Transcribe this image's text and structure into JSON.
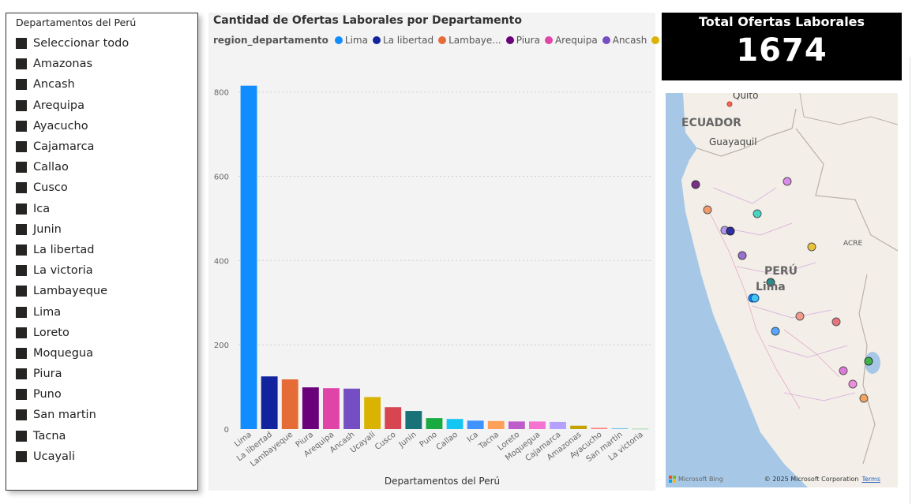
{
  "slicer": {
    "title": "Departamentos del Perú",
    "items": [
      {
        "label": "Seleccionar todo"
      },
      {
        "label": "Amazonas"
      },
      {
        "label": "Ancash"
      },
      {
        "label": "Arequipa"
      },
      {
        "label": "Ayacucho"
      },
      {
        "label": "Cajamarca"
      },
      {
        "label": "Callao"
      },
      {
        "label": "Cusco"
      },
      {
        "label": "Ica"
      },
      {
        "label": "Junin"
      },
      {
        "label": "La libertad"
      },
      {
        "label": "La victoria"
      },
      {
        "label": "Lambayeque"
      },
      {
        "label": "Lima"
      },
      {
        "label": "Loreto"
      },
      {
        "label": "Moquegua"
      },
      {
        "label": "Piura"
      },
      {
        "label": "Puno"
      },
      {
        "label": "San martin"
      },
      {
        "label": "Tacna"
      },
      {
        "label": "Ucayali"
      }
    ]
  },
  "legend": {
    "title": "region_departamento",
    "items": [
      {
        "label": "Lima",
        "color": "#118DFF"
      },
      {
        "label": "La libertad",
        "color": "#12239E"
      },
      {
        "label": "Lambaye...",
        "color": "#E66C37"
      },
      {
        "label": "Piura",
        "color": "#6B007B"
      },
      {
        "label": "Arequipa",
        "color": "#E044A7"
      },
      {
        "label": "Ancash",
        "color": "#744EC2"
      },
      {
        "label": "Ucayali",
        "color": "#D9B300"
      }
    ],
    "arrow": "▶"
  },
  "chart_data": {
    "type": "bar",
    "title": "Cantidad de Ofertas Laborales por Departamento",
    "xlabel": "Departamentos del Perú",
    "ylabel": "",
    "ylim": [
      0,
      820
    ],
    "yticks": [
      0,
      200,
      400,
      600,
      800
    ],
    "grid": true,
    "legend_position": "top",
    "categories": [
      "Lima",
      "La libertad",
      "Lambayeque",
      "Piura",
      "Arequipa",
      "Ancash",
      "Ucayali",
      "Cusco",
      "Junin",
      "Puno",
      "Callao",
      "Ica",
      "Tacna",
      "Loreto",
      "Moquegua",
      "Cajamarca",
      "Amazonas",
      "Ayacucho",
      "San martin",
      "La victoria"
    ],
    "values": [
      815,
      125,
      118,
      99,
      97,
      96,
      76,
      52,
      43,
      26,
      24,
      20,
      19,
      18,
      18,
      17,
      8,
      3,
      2,
      1
    ],
    "colors": [
      "#118DFF",
      "#12239E",
      "#E66C37",
      "#6B007B",
      "#E044A7",
      "#744EC2",
      "#D9B300",
      "#D64550",
      "#197278",
      "#1AAB40",
      "#15C6F4",
      "#4092FF",
      "#FFA058",
      "#BE5DC9",
      "#F472D0",
      "#B5A1FF",
      "#C4A200",
      "#FF8080",
      "#6FC4E8",
      "#8FD39F"
    ]
  },
  "kpi": {
    "title": "Total Ofertas Laborales",
    "value": "1674"
  },
  "map": {
    "labels": {
      "quito": "Quito",
      "ecuador": "ECUADOR",
      "guayaquil": "Guayaquil",
      "acre": "ACRE",
      "peru": "PERÚ",
      "lima": "Lima"
    },
    "provider": "Microsoft Bing",
    "copyright": "© 2025 Microsoft Corporation",
    "terms": "Terms"
  }
}
